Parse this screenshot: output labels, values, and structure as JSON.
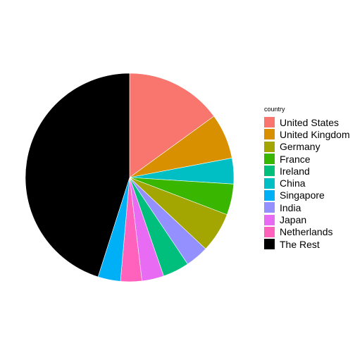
{
  "chart_data": {
    "type": "pie",
    "legend_title": "country",
    "legend_position": "right",
    "slices": [
      {
        "label": "United States",
        "value": 15.0,
        "color": "#F8766D"
      },
      {
        "label": "United Kingdom",
        "value": 7.0,
        "color": "#D89000"
      },
      {
        "label": "China",
        "value": 4.0,
        "color": "#00BFC4"
      },
      {
        "label": "France",
        "value": 4.8,
        "color": "#39B600"
      },
      {
        "label": "Germany",
        "value": 6.2,
        "color": "#A3A500"
      },
      {
        "label": "India",
        "value": 3.6,
        "color": "#9590FF"
      },
      {
        "label": "Ireland",
        "value": 4.1,
        "color": "#00BF7D"
      },
      {
        "label": "Japan",
        "value": 3.4,
        "color": "#E76BF3"
      },
      {
        "label": "Netherlands",
        "value": 3.3,
        "color": "#FF62BC"
      },
      {
        "label": "Singapore",
        "value": 3.5,
        "color": "#00B0F6"
      },
      {
        "label": "The Rest",
        "value": 45.1,
        "color": "#000000"
      }
    ],
    "legend_order": [
      "United States",
      "United Kingdom",
      "Germany",
      "France",
      "Ireland",
      "China",
      "Singapore",
      "India",
      "Japan",
      "Netherlands",
      "The Rest"
    ]
  }
}
